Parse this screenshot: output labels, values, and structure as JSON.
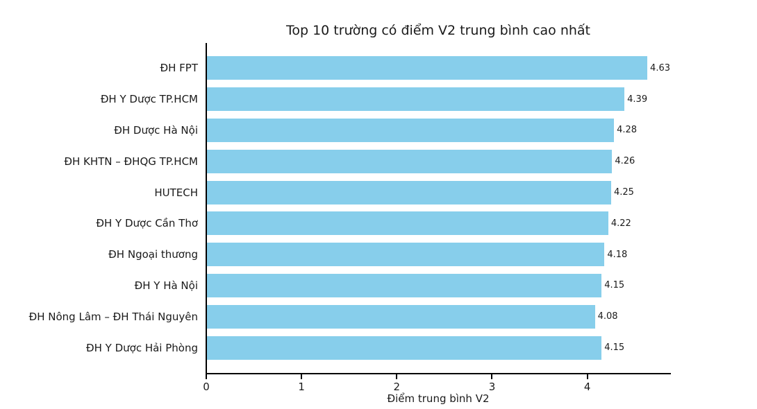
{
  "chart_data": {
    "type": "bar",
    "orientation": "horizontal",
    "title": "Top 10 trường có điểm V2 trung bình cao nhất",
    "xlabel": "Điểm trung bình V2",
    "ylabel": "",
    "categories": [
      "ĐH FPT",
      "ĐH Y Dược TP.HCM",
      "ĐH Dược Hà Nội",
      "ĐH KHTN – ĐHQG TP.HCM",
      "HUTECH",
      "ĐH Y Dược Cần Thơ",
      "ĐH Ngoại thương",
      "ĐH Y Hà Nội",
      "ĐH Nông Lâm – ĐH Thái Nguyên",
      "ĐH Y Dược Hải Phòng"
    ],
    "values": [
      4.63,
      4.39,
      4.28,
      4.26,
      4.25,
      4.22,
      4.18,
      4.15,
      4.08,
      4.15
    ],
    "value_labels": [
      "4.63",
      "4.39",
      "4.28",
      "4.26",
      "4.25",
      "4.22",
      "4.18",
      "4.15",
      "4.08",
      "4.15"
    ],
    "xlim": [
      0,
      4.87
    ],
    "xticks": [
      0,
      1,
      2,
      3,
      4
    ],
    "grid": false,
    "legend": "none",
    "bar_color": "#87CEEB",
    "background_color": "#ffffff",
    "axis_color": "#000000",
    "text_color": "#1a1a1a"
  }
}
